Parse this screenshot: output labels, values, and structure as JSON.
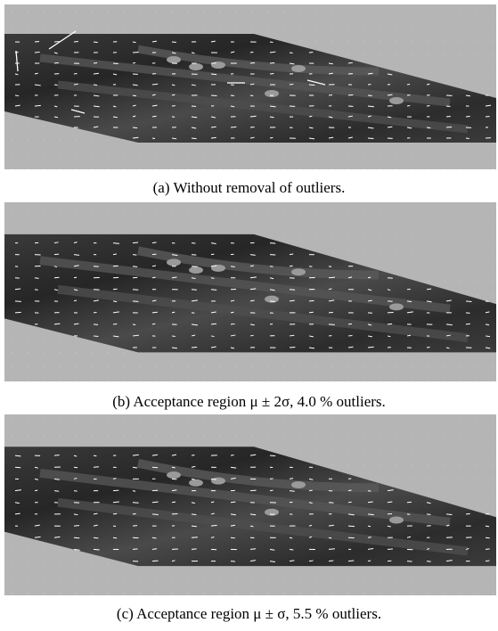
{
  "figure": {
    "captions": [
      "(a) Without removal of outliers.",
      "(b) Acceptance region μ ± 2σ, 4.0 % outliers.",
      "(c) Acceptance region μ ± σ, 5.5 % outliers."
    ]
  }
}
